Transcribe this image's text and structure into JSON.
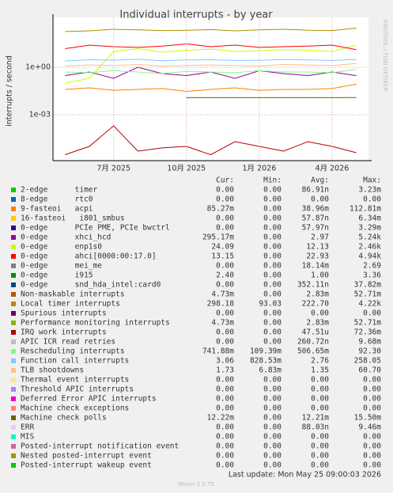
{
  "chart_data": {
    "type": "line",
    "title": "Individual interrupts - by year",
    "y_label": "interrupts / second",
    "side_label": "RRDTOOL / TOBI OETIKER",
    "log_scale": true,
    "grid": true,
    "categories": [
      null,
      null,
      "7月 2025",
      null,
      null,
      "10月 2025",
      null,
      null,
      "1月 2026",
      null,
      null,
      "4月 2026",
      null
    ],
    "ylim": [
      1.26e-06,
      1413
    ],
    "yticks": [
      {
        "value": 1,
        "label": "1e+00"
      },
      {
        "value": 0.001,
        "label": "1e-03"
      }
    ],
    "columns": [
      "Cur:",
      "Min:",
      "Avg:",
      "Max:"
    ],
    "series": [
      {
        "name": "2-edge      timer",
        "color": "#00cc00",
        "cur": "0.00",
        "min": "0.00",
        "avg": "86.91n",
        "max": "3.23m"
      },
      {
        "name": "8-edge      rtc0",
        "color": "#0066b3",
        "cur": "0.00",
        "min": "0.00",
        "avg": "0.00",
        "max": "0.00"
      },
      {
        "name": "9-fasteoi   acpi",
        "color": "#ff8000",
        "cur": "85.27m",
        "min": "0.00",
        "avg": "38.96m",
        "max": "112.81m",
        "values": [
          0.04,
          0.05,
          0.035,
          0.04,
          0.045,
          0.03,
          0.04,
          0.05,
          0.035,
          0.04,
          0.04,
          0.045,
          0.085
        ]
      },
      {
        "name": "16-fasteoi   i801_smbus",
        "color": "#ffcc00",
        "cur": "0.00",
        "min": "0.00",
        "avg": "57.87n",
        "max": "6.34m"
      },
      {
        "name": "0-edge      PCIe PME, PCIe bwctrl",
        "color": "#330099",
        "cur": "0.00",
        "min": "0.00",
        "avg": "57.97n",
        "max": "3.29m"
      },
      {
        "name": "0-edge      xhci_hcd",
        "color": "#990099",
        "cur": "295.17m",
        "min": "0.00",
        "avg": "2.97",
        "max": "5.24k",
        "values": [
          0.3,
          0.5,
          0.2,
          1,
          0.4,
          0.3,
          0.5,
          0.2,
          0.6,
          0.4,
          0.3,
          0.5,
          0.295
        ]
      },
      {
        "name": "0-edge      enp1s0",
        "color": "#ccff00",
        "cur": "24.09",
        "min": "0.00",
        "avg": "12.13",
        "max": "2.46k",
        "values": [
          0.1,
          0.2,
          10,
          15,
          9,
          12,
          14,
          10,
          11,
          13,
          12,
          10,
          24
        ]
      },
      {
        "name": "0-edge      ahci[0000:00:17.0]",
        "color": "#ff0000",
        "cur": "13.15",
        "min": "0.00",
        "avg": "22.93",
        "max": "4.94k",
        "values": [
          15,
          25,
          20,
          18,
          22,
          30,
          20,
          25,
          18,
          20,
          22,
          25,
          13
        ]
      },
      {
        "name": "0-edge      mei_me",
        "color": "#808080",
        "cur": "0.00",
        "min": "0.00",
        "avg": "18.14m",
        "max": "2.69"
      },
      {
        "name": "0-edge      i915",
        "color": "#008f00",
        "cur": "2.40",
        "min": "0.00",
        "avg": "1.00",
        "max": "3.36"
      },
      {
        "name": "0-edge      snd_hda_intel:card0",
        "color": "#00487d",
        "cur": "0.00",
        "min": "0.00",
        "avg": "352.11n",
        "max": "37.82m"
      },
      {
        "name": "Non-maskable interrupts",
        "color": "#b35a00",
        "cur": "4.73m",
        "min": "0.00",
        "avg": "2.83m",
        "max": "52.71m"
      },
      {
        "name": "Local timer interrupts",
        "color": "#b38f00",
        "cur": "298.18",
        "min": "93.03",
        "avg": "222.70",
        "max": "4.22k",
        "values": [
          180,
          200,
          250,
          230,
          210,
          220,
          240,
          200,
          230,
          250,
          220,
          210,
          298
        ]
      },
      {
        "name": "Spurious interrupts",
        "color": "#6b006b",
        "cur": "0.00",
        "min": "0.00",
        "avg": "0.00",
        "max": "0.00"
      },
      {
        "name": "Performance monitoring interrupts",
        "color": "#8fb300",
        "cur": "4.73m",
        "min": "0.00",
        "avg": "2.83m",
        "max": "52.71m"
      },
      {
        "name": "IRQ work interrupts",
        "color": "#b30000",
        "cur": "0.00",
        "min": "0.00",
        "avg": "47.51u",
        "max": "72.36m",
        "values": [
          3e-06,
          1e-05,
          0.0002,
          5e-06,
          8e-06,
          1e-05,
          3e-06,
          2e-05,
          1e-05,
          5e-06,
          2e-05,
          1e-05,
          4e-06
        ]
      },
      {
        "name": "APIC ICR read retries",
        "color": "#bebebe",
        "cur": "0.00",
        "min": "0.00",
        "avg": "260.72n",
        "max": "9.68m"
      },
      {
        "name": "Rescheduling interrupts",
        "color": "#80ff80",
        "cur": "741.88m",
        "min": "109.39m",
        "avg": "506.65m",
        "max": "92.30",
        "values": [
          0.5,
          0.45,
          0.6,
          0.5,
          0.4,
          0.55,
          0.5,
          0.45,
          0.6,
          0.5,
          0.5,
          0.45,
          0.74
        ]
      },
      {
        "name": "Function call interrupts",
        "color": "#80c9ff",
        "cur": "3.06",
        "min": "828.53m",
        "avg": "2.76",
        "max": "258.05",
        "values": [
          2.5,
          3,
          2.8,
          3.2,
          2.6,
          2.9,
          3,
          2.7,
          2.8,
          3.1,
          2.9,
          2.7,
          3.06
        ]
      },
      {
        "name": "TLB shootdowns",
        "color": "#ffc080",
        "cur": "1.73",
        "min": "6.83m",
        "avg": "1.35",
        "max": "60.70",
        "values": [
          1.2,
          1.4,
          1.3,
          1.5,
          1.2,
          1.3,
          1.4,
          1.3,
          1.2,
          1.5,
          1.4,
          1.3,
          1.73
        ]
      },
      {
        "name": "Thermal event interrupts",
        "color": "#ffe680",
        "cur": "0.00",
        "min": "0.00",
        "avg": "0.00",
        "max": "0.00"
      },
      {
        "name": "Threshold APIC interrupts",
        "color": "#aa80ff",
        "cur": "0.00",
        "min": "0.00",
        "avg": "0.00",
        "max": "0.00"
      },
      {
        "name": "Deferred Error APIC interrupts",
        "color": "#ee00cc",
        "cur": "0.00",
        "min": "0.00",
        "avg": "0.00",
        "max": "0.00"
      },
      {
        "name": "Machine check exceptions",
        "color": "#ff8080",
        "cur": "0.00",
        "min": "0.00",
        "avg": "0.00",
        "max": "0.00"
      },
      {
        "name": "Machine check polls",
        "color": "#666600",
        "cur": "12.22m",
        "min": "0.00",
        "avg": "12.21m",
        "max": "15.50m",
        "values": [
          null,
          null,
          null,
          null,
          null,
          0.012,
          0.012,
          0.012,
          0.012,
          0.012,
          0.012,
          0.012,
          0.01222
        ]
      },
      {
        "name": "ERR",
        "color": "#ffbfff",
        "cur": "0.00",
        "min": "0.00",
        "avg": "88.03n",
        "max": "9.46m"
      },
      {
        "name": "MIS",
        "color": "#00ffcc",
        "cur": "0.00",
        "min": "0.00",
        "avg": "0.00",
        "max": "0.00"
      },
      {
        "name": "Posted-interrupt notification event",
        "color": "#cc6699",
        "cur": "0.00",
        "min": "0.00",
        "avg": "0.00",
        "max": "0.00"
      },
      {
        "name": "Nested posted-interrupt event",
        "color": "#999900",
        "cur": "0.00",
        "min": "0.00",
        "avg": "0.00",
        "max": "0.00"
      },
      {
        "name": "Posted-interrupt wakeup event",
        "color": "#00cc00",
        "cur": "0.00",
        "min": "0.00",
        "avg": "0.00",
        "max": "0.00"
      }
    ],
    "last_update": "Last update: Mon May 25 09:00:03 2026",
    "footer": "Munin 2.0.75"
  }
}
